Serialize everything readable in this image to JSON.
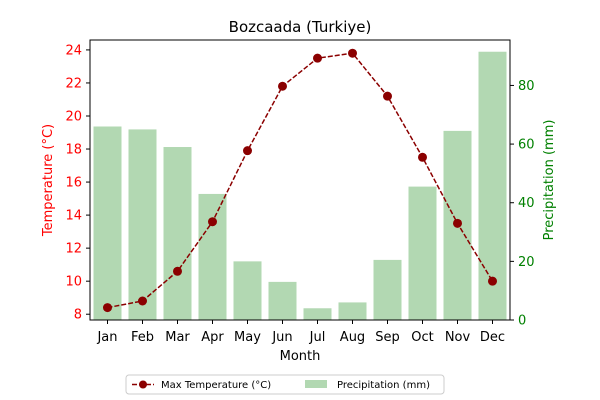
{
  "chart_data": {
    "type": "bar",
    "title": "Bozcaada (Turkiye)",
    "xlabel": "Month",
    "categories": [
      "Jan",
      "Feb",
      "Mar",
      "Apr",
      "May",
      "Jun",
      "Jul",
      "Aug",
      "Sep",
      "Oct",
      "Nov",
      "Dec"
    ],
    "series": [
      {
        "name": "Max Temperature (°C)",
        "type": "line",
        "axis": "left",
        "color": "#8b0000",
        "values": [
          8.4,
          8.8,
          10.6,
          13.6,
          17.9,
          21.8,
          23.5,
          23.8,
          21.2,
          17.5,
          13.5,
          10.0
        ]
      },
      {
        "name": "Precipitation (mm)",
        "type": "bar",
        "axis": "right",
        "color": "#b2d8b2",
        "values": [
          66,
          65,
          59,
          43,
          20,
          13,
          4,
          6,
          20.5,
          45.5,
          64.5,
          91.5
        ]
      }
    ],
    "y_left": {
      "label": "Temperature (°C)",
      "color": "#ff0000",
      "ylim": [
        7.65,
        24.6
      ],
      "ticks": [
        8,
        10,
        12,
        14,
        16,
        18,
        20,
        22,
        24
      ]
    },
    "y_right": {
      "label": "Precipitation (mm)",
      "color": "#008000",
      "ylim": [
        0,
        95.5
      ],
      "ticks": [
        0,
        20,
        40,
        60,
        80
      ]
    },
    "grid": false,
    "legend_position": "bottom-center"
  }
}
